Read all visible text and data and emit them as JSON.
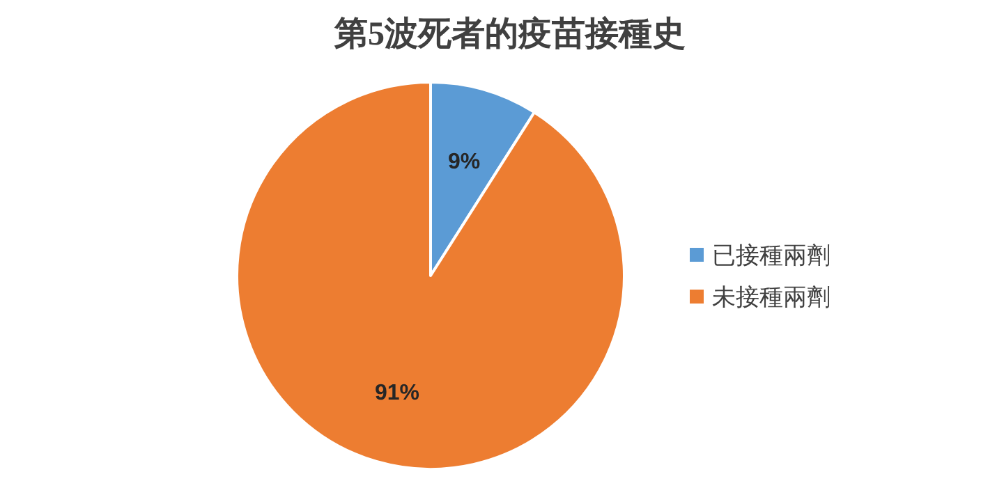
{
  "chart_data": {
    "type": "pie",
    "title": "第5波死者的疫苗接種史",
    "categories": [
      "已接種兩劑",
      "未接種兩劑"
    ],
    "values": [
      9,
      91
    ],
    "colors": [
      "#5b9bd5",
      "#ed7d31"
    ],
    "value_labels": [
      "9%",
      "91%"
    ],
    "legend": "right"
  }
}
